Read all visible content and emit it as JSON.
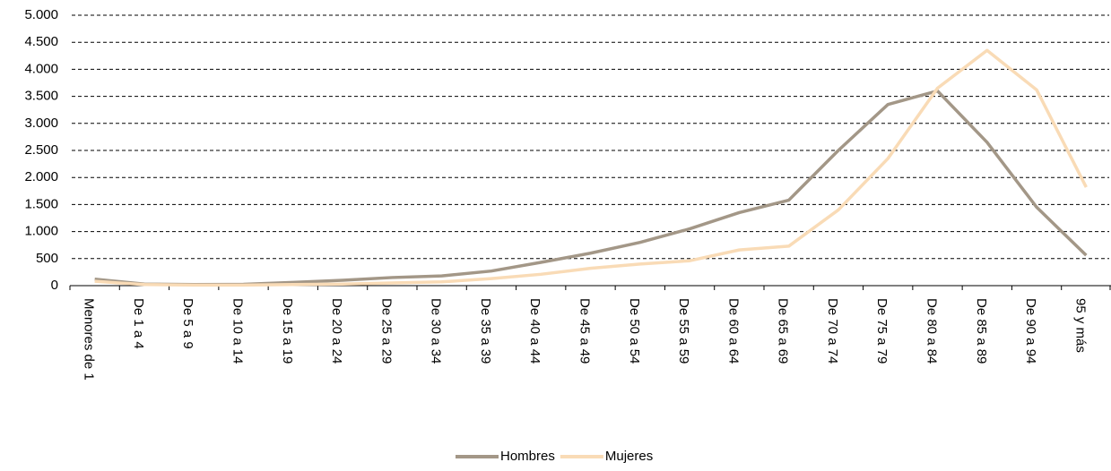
{
  "chart_data": {
    "type": "line",
    "categories": [
      "Menores de 1",
      "De 1 a 4",
      "De 5 a 9",
      "De 10 a 14",
      "De 15 a 19",
      "De 20 a 24",
      "De 25 a 29",
      "De 30 a 34",
      "De 35 a 39",
      "De 40 a 44",
      "De 45 a 49",
      "De 50 a 54",
      "De 55 a 59",
      "De 60 a 64",
      "De 65 a 69",
      "De 70 a 74",
      "De 75 a 79",
      "De 80 a 84",
      "De 85 a 89",
      "De 90 a 94",
      "95 y más"
    ],
    "series": [
      {
        "name": "Hombres",
        "color": "#a39787",
        "values": [
          120,
          30,
          20,
          25,
          60,
          100,
          150,
          180,
          270,
          430,
          600,
          800,
          1050,
          1350,
          1580,
          2500,
          3350,
          3600,
          2650,
          1450,
          560
        ]
      },
      {
        "name": "Mujeres",
        "color": "#f9dbb6",
        "values": [
          80,
          20,
          10,
          10,
          20,
          30,
          50,
          70,
          130,
          210,
          320,
          400,
          460,
          660,
          730,
          1400,
          2350,
          3650,
          4350,
          3620,
          1820
        ]
      }
    ],
    "ylim": [
      0,
      5000
    ],
    "yticks": [
      0,
      500,
      {
        "value": 1000,
        "label": "1.000"
      },
      {
        "value": 1500,
        "label": "1.500"
      },
      {
        "value": 2000,
        "label": "2.000"
      },
      {
        "value": 2500,
        "label": "2.500"
      },
      {
        "value": 3000,
        "label": "3.000"
      },
      {
        "value": 3500,
        "label": "3.500"
      },
      {
        "value": 4000,
        "label": "4.000"
      },
      {
        "value": 4500,
        "label": "4.500"
      },
      {
        "value": 5000,
        "label": "5.000"
      }
    ],
    "grid": true,
    "legend": "bottom"
  }
}
